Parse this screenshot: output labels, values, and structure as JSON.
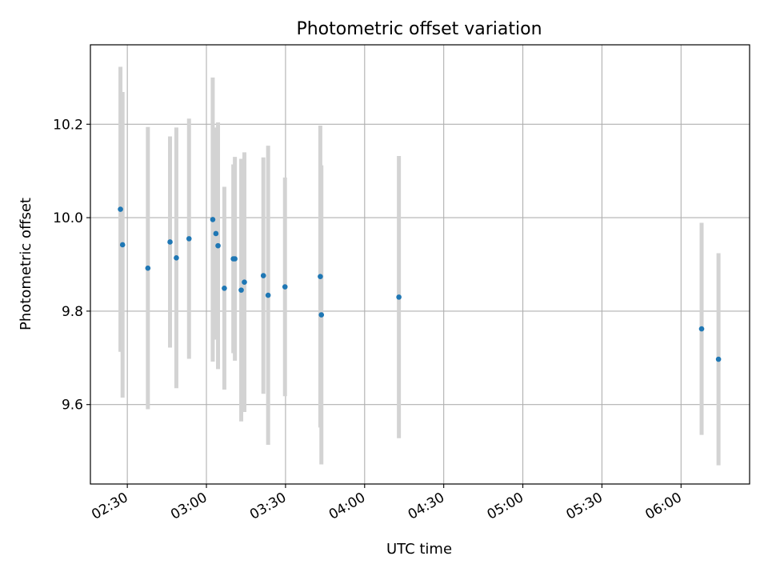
{
  "chart_data": {
    "type": "scatter",
    "title": "Photometric offset variation",
    "xlabel": "UTC time",
    "ylabel": "Photometric offset",
    "x_ticks": [
      "02:30",
      "03:00",
      "03:30",
      "04:00",
      "04:30",
      "05:00",
      "05:30",
      "06:00"
    ],
    "y_ticks": [
      "9.6",
      "9.8",
      "10.0",
      "10.2"
    ],
    "y_tick_values": [
      9.6,
      9.8,
      10.0,
      10.2
    ],
    "xlim": [
      "02:16",
      "06:26"
    ],
    "ylim": [
      9.43,
      10.37
    ],
    "grid": true,
    "errorbar_color": "#d3d3d3",
    "marker_color": "#1f77b4",
    "points": [
      {
        "x": "02:27:24",
        "y": 10.018,
        "err": 0.305
      },
      {
        "x": "02:28:12",
        "y": 9.942,
        "err": 0.327
      },
      {
        "x": "02:37:48",
        "y": 9.892,
        "err": 0.302
      },
      {
        "x": "02:46:12",
        "y": 9.948,
        "err": 0.226
      },
      {
        "x": "02:48:36",
        "y": 9.914,
        "err": 0.279
      },
      {
        "x": "02:53:24",
        "y": 9.955,
        "err": 0.257
      },
      {
        "x": "03:02:24",
        "y": 9.996,
        "err": 0.304
      },
      {
        "x": "03:03:36",
        "y": 9.966,
        "err": 0.227
      },
      {
        "x": "03:04:24",
        "y": 9.94,
        "err": 0.264
      },
      {
        "x": "03:06:48",
        "y": 9.849,
        "err": 0.217
      },
      {
        "x": "03:10:12",
        "y": 9.912,
        "err": 0.202
      },
      {
        "x": "03:10:48",
        "y": 9.912,
        "err": 0.218
      },
      {
        "x": "03:13:12",
        "y": 9.845,
        "err": 0.281
      },
      {
        "x": "03:14:24",
        "y": 9.862,
        "err": 0.278
      },
      {
        "x": "03:21:36",
        "y": 9.876,
        "err": 0.253
      },
      {
        "x": "03:23:24",
        "y": 9.834,
        "err": 0.32
      },
      {
        "x": "03:29:48",
        "y": 9.852,
        "err": 0.234
      },
      {
        "x": "03:43:12",
        "y": 9.874,
        "err": 0.323
      },
      {
        "x": "03:43:36",
        "y": 9.792,
        "err": 0.32
      },
      {
        "x": "04:13:00",
        "y": 9.83,
        "err": 0.302
      },
      {
        "x": "06:07:48",
        "y": 9.762,
        "err": 0.227
      },
      {
        "x": "06:14:12",
        "y": 9.697,
        "err": 0.227
      }
    ]
  }
}
